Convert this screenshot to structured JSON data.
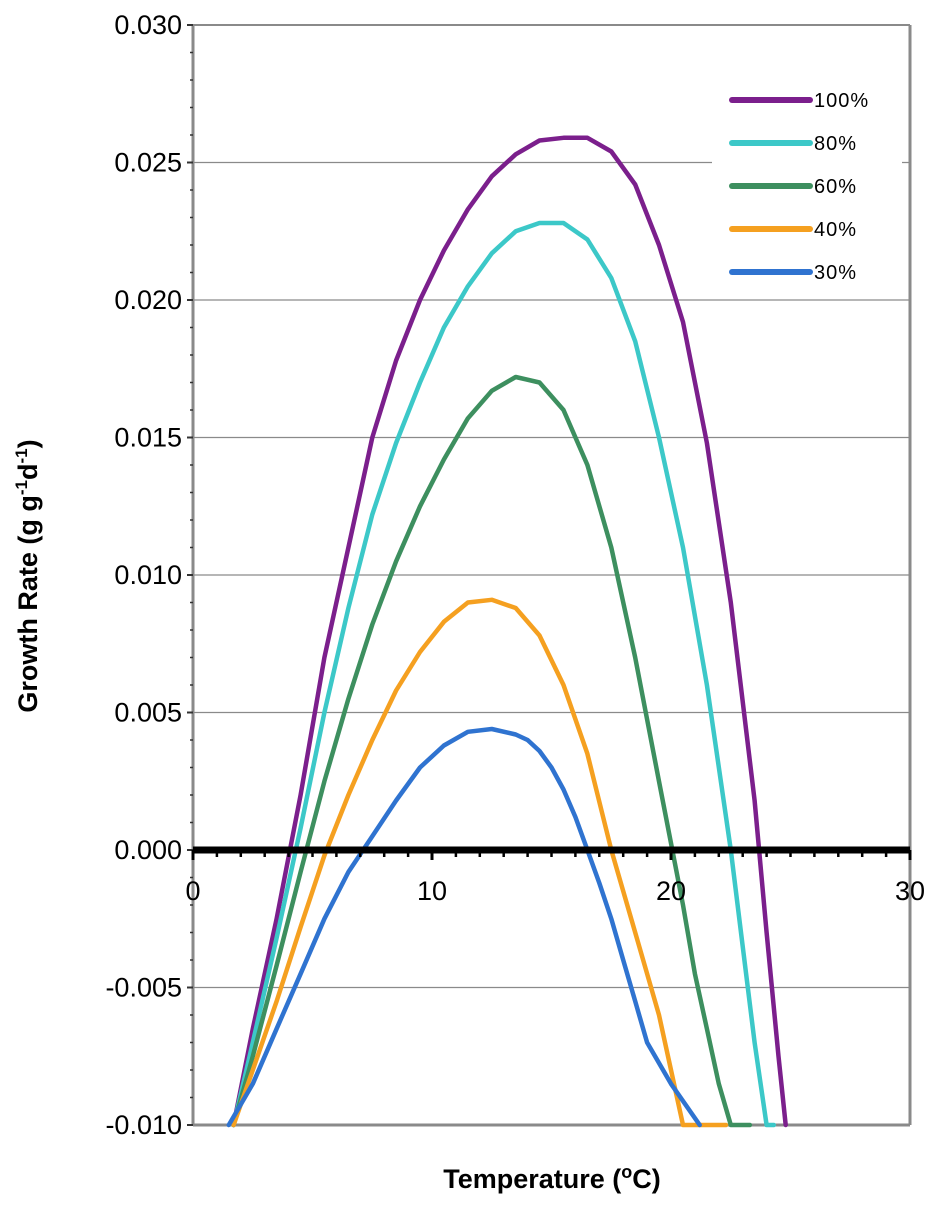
{
  "chart_data": {
    "type": "line",
    "title": "",
    "xlabel": "Temperature (",
    "xlabel_sup": "o",
    "xlabel_end": "C)",
    "ylabel": "Growth Rate (g g",
    "ylabel_sup1": "-1",
    "ylabel_mid": "d",
    "ylabel_sup2": "-1",
    "ylabel_end": ")",
    "xlim": [
      0,
      30
    ],
    "ylim": [
      -0.01,
      0.03
    ],
    "x_ticks": [
      0,
      10,
      20,
      30
    ],
    "x_tick_labels": [
      "0",
      "10",
      "20",
      "30"
    ],
    "y_ticks": [
      -0.01,
      -0.005,
      0.0,
      0.005,
      0.01,
      0.015,
      0.02,
      0.025,
      0.03
    ],
    "y_tick_labels": [
      "-0.010",
      "-0.005",
      "0.000",
      "0.005",
      "0.010",
      "0.015",
      "0.020",
      "0.025",
      "0.030"
    ],
    "grid": "horizontal",
    "legend_position": "top-right",
    "zero_line": true,
    "series": [
      {
        "name": "100%",
        "color": "#7b1f8c",
        "x": [
          1.7,
          2.5,
          3.5,
          4.5,
          5.5,
          6.5,
          7.5,
          8.5,
          9.5,
          10.5,
          11.5,
          12.5,
          13.5,
          14.5,
          15.5,
          16.5,
          17.5,
          18.5,
          19.5,
          20.5,
          21.5,
          22.5,
          23.5,
          24.0,
          24.5,
          24.8
        ],
        "y": [
          -0.01,
          -0.0065,
          -0.0025,
          0.002,
          0.007,
          0.011,
          0.015,
          0.0178,
          0.02,
          0.0218,
          0.0233,
          0.0245,
          0.0253,
          0.0258,
          0.0259,
          0.0259,
          0.0254,
          0.0242,
          0.022,
          0.0192,
          0.0148,
          0.009,
          0.0018,
          -0.003,
          -0.0075,
          -0.01
        ]
      },
      {
        "name": "80%",
        "color": "#3cc8c8",
        "x": [
          1.7,
          2.5,
          3.5,
          4.5,
          5.5,
          6.5,
          7.5,
          8.5,
          9.5,
          10.5,
          11.5,
          12.5,
          13.5,
          14.5,
          15.5,
          16.5,
          17.5,
          18.5,
          19.5,
          20.5,
          21.5,
          22.5,
          23.0,
          23.5,
          24.0,
          24.3
        ],
        "y": [
          -0.01,
          -0.007,
          -0.0032,
          0.0008,
          0.005,
          0.0088,
          0.0122,
          0.0148,
          0.017,
          0.019,
          0.0205,
          0.0217,
          0.0225,
          0.0228,
          0.0228,
          0.0222,
          0.0208,
          0.0185,
          0.015,
          0.011,
          0.006,
          0.0,
          -0.0035,
          -0.007,
          -0.01,
          -0.01
        ]
      },
      {
        "name": "60%",
        "color": "#3d8f5f",
        "x": [
          1.7,
          2.5,
          3.5,
          4.5,
          5.5,
          6.5,
          7.5,
          8.5,
          9.5,
          10.5,
          11.5,
          12.5,
          13.5,
          14.5,
          15.5,
          16.5,
          17.5,
          18.5,
          19.5,
          20.5,
          21.0,
          21.5,
          22.0,
          22.5,
          23.0,
          23.3
        ],
        "y": [
          -0.01,
          -0.0075,
          -0.0042,
          -0.0008,
          0.0025,
          0.0055,
          0.0082,
          0.0105,
          0.0125,
          0.0142,
          0.0157,
          0.0167,
          0.0172,
          0.017,
          0.016,
          0.014,
          0.011,
          0.007,
          0.0025,
          -0.002,
          -0.0045,
          -0.0065,
          -0.0085,
          -0.01,
          -0.01,
          -0.01
        ]
      },
      {
        "name": "40%",
        "color": "#f5a020",
        "x": [
          1.7,
          2.5,
          3.5,
          4.5,
          5.5,
          6.5,
          7.5,
          8.5,
          9.5,
          10.5,
          11.5,
          12.5,
          13.5,
          14.5,
          15.5,
          16.5,
          17.5,
          18.5,
          19.5,
          20.0,
          20.5,
          21.0,
          21.5,
          22.0,
          22.2,
          22.3
        ],
        "y": [
          -0.01,
          -0.008,
          -0.0055,
          -0.0028,
          -0.0002,
          0.002,
          0.004,
          0.0058,
          0.0072,
          0.0083,
          0.009,
          0.0091,
          0.0088,
          0.0078,
          0.006,
          0.0035,
          0.0,
          -0.003,
          -0.006,
          -0.008,
          -0.01,
          -0.01,
          -0.01,
          -0.01,
          -0.01,
          -0.01
        ]
      },
      {
        "name": "30%",
        "color": "#2f73d0",
        "x": [
          1.5,
          2.5,
          3.5,
          4.5,
          5.5,
          6.5,
          7.5,
          8.5,
          9.5,
          10.5,
          11.5,
          12.5,
          13.5,
          14.0,
          14.5,
          15.0,
          15.5,
          16.0,
          16.5,
          17.0,
          17.5,
          18.0,
          18.5,
          19.0,
          20.0,
          21.2
        ],
        "y": [
          -0.01,
          -0.0085,
          -0.0065,
          -0.0045,
          -0.0025,
          -0.0008,
          0.0005,
          0.0018,
          0.003,
          0.0038,
          0.0043,
          0.0044,
          0.0042,
          0.004,
          0.0036,
          0.003,
          0.0022,
          0.0012,
          0.0,
          -0.0012,
          -0.0025,
          -0.004,
          -0.0055,
          -0.007,
          -0.0085,
          -0.01
        ]
      }
    ]
  }
}
